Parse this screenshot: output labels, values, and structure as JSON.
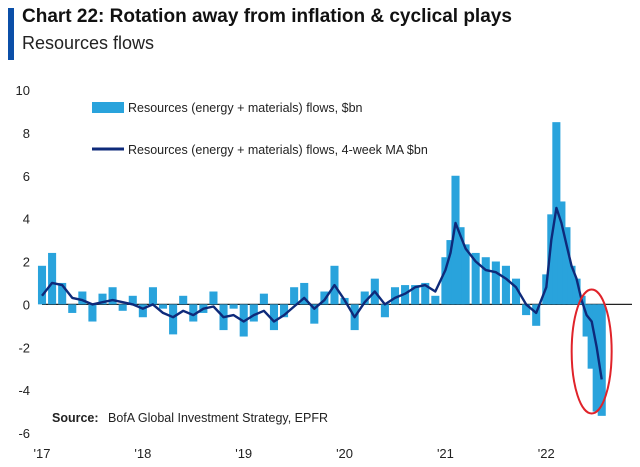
{
  "header": {
    "title": "Chart 22: Rotation away  from inflation & cyclical plays",
    "subtitle": "Resources flows"
  },
  "source": {
    "label": "Source:",
    "text": "BofA Global Investment Strategy, EPFR"
  },
  "colors": {
    "accent": "#0b4fa8",
    "bars": "#29a3dc",
    "ma_line": "#0e2a7a",
    "highlight": "#e0232a"
  },
  "chart_data": {
    "type": "bar",
    "title": "Chart 22: Rotation away  from inflation & cyclical plays",
    "subtitle": "Resources flows",
    "xlabel": "",
    "ylabel": "",
    "ylim": [
      -6,
      10
    ],
    "yticks": [
      "10",
      "8",
      "6",
      "4",
      "2",
      "0",
      "-2",
      "-4",
      "-6"
    ],
    "xticks": [
      "'17",
      "'18",
      "'19",
      "'20",
      "'21",
      "'22"
    ],
    "xrange": [
      2017.0,
      2022.85
    ],
    "legend_position": "top-left",
    "annotation": "red circle around early-2022 to mid-2022 outflows",
    "series": [
      {
        "name": "Resources (energy + materials) flows, $bn",
        "kind": "bar",
        "x": [
          2017.0,
          2017.1,
          2017.2,
          2017.3,
          2017.4,
          2017.5,
          2017.6,
          2017.7,
          2017.8,
          2017.9,
          2018.0,
          2018.1,
          2018.2,
          2018.3,
          2018.4,
          2018.5,
          2018.6,
          2018.7,
          2018.8,
          2018.9,
          2019.0,
          2019.1,
          2019.2,
          2019.3,
          2019.4,
          2019.5,
          2019.6,
          2019.7,
          2019.8,
          2019.9,
          2020.0,
          2020.1,
          2020.2,
          2020.3,
          2020.4,
          2020.5,
          2020.6,
          2020.7,
          2020.8,
          2020.9,
          2021.0,
          2021.05,
          2021.1,
          2021.15,
          2021.2,
          2021.3,
          2021.4,
          2021.5,
          2021.6,
          2021.7,
          2021.8,
          2021.9,
          2022.0,
          2022.05,
          2022.1,
          2022.15,
          2022.2,
          2022.25,
          2022.3,
          2022.35,
          2022.4,
          2022.45,
          2022.5,
          2022.55
        ],
        "values": [
          1.8,
          2.4,
          1.0,
          -0.4,
          0.6,
          -0.8,
          0.5,
          0.8,
          -0.3,
          0.4,
          -0.6,
          0.8,
          -0.2,
          -1.4,
          0.4,
          -0.8,
          -0.4,
          0.6,
          -1.2,
          -0.2,
          -1.5,
          -0.8,
          0.5,
          -1.2,
          -0.6,
          0.8,
          1.0,
          -0.9,
          0.6,
          1.8,
          0.3,
          -1.2,
          0.6,
          1.2,
          -0.6,
          0.8,
          0.9,
          0.9,
          1.0,
          0.4,
          2.2,
          3.0,
          6.0,
          3.6,
          2.8,
          2.4,
          2.2,
          2.0,
          1.8,
          1.2,
          -0.5,
          -1.0,
          1.4,
          4.2,
          8.5,
          4.8,
          3.6,
          1.8,
          1.2,
          0.4,
          -1.5,
          -3.0,
          -5.0,
          -5.2
        ]
      },
      {
        "name": "Resources (energy + materials) flows, 4-week MA $bn",
        "kind": "line",
        "x": [
          2017.0,
          2017.1,
          2017.2,
          2017.3,
          2017.4,
          2017.5,
          2017.6,
          2017.7,
          2017.8,
          2017.9,
          2018.0,
          2018.1,
          2018.2,
          2018.3,
          2018.4,
          2018.5,
          2018.6,
          2018.7,
          2018.8,
          2018.9,
          2019.0,
          2019.1,
          2019.2,
          2019.3,
          2019.4,
          2019.5,
          2019.6,
          2019.7,
          2019.8,
          2019.9,
          2020.0,
          2020.1,
          2020.2,
          2020.3,
          2020.4,
          2020.5,
          2020.6,
          2020.7,
          2020.8,
          2020.9,
          2021.0,
          2021.05,
          2021.1,
          2021.15,
          2021.2,
          2021.3,
          2021.4,
          2021.5,
          2021.6,
          2021.7,
          2021.8,
          2021.9,
          2022.0,
          2022.05,
          2022.1,
          2022.15,
          2022.2,
          2022.25,
          2022.3,
          2022.35,
          2022.4,
          2022.45,
          2022.5,
          2022.55
        ],
        "values": [
          0.4,
          1.0,
          0.9,
          0.3,
          0.2,
          0.0,
          0.1,
          0.2,
          0.1,
          0.0,
          -0.2,
          0.0,
          -0.4,
          -0.6,
          -0.3,
          -0.5,
          -0.2,
          -0.1,
          -0.6,
          -0.5,
          -0.8,
          -0.5,
          -0.3,
          -0.8,
          -0.5,
          -0.1,
          0.3,
          -0.2,
          0.2,
          0.9,
          0.2,
          -0.6,
          0.1,
          0.6,
          0.0,
          0.3,
          0.5,
          0.8,
          0.9,
          0.6,
          1.6,
          2.4,
          3.8,
          3.2,
          2.6,
          2.0,
          1.6,
          1.5,
          1.2,
          0.8,
          0.0,
          -0.4,
          0.8,
          3.0,
          4.5,
          3.8,
          2.8,
          1.8,
          1.2,
          0.2,
          -0.5,
          -0.8,
          -2.0,
          -3.5
        ]
      }
    ]
  }
}
